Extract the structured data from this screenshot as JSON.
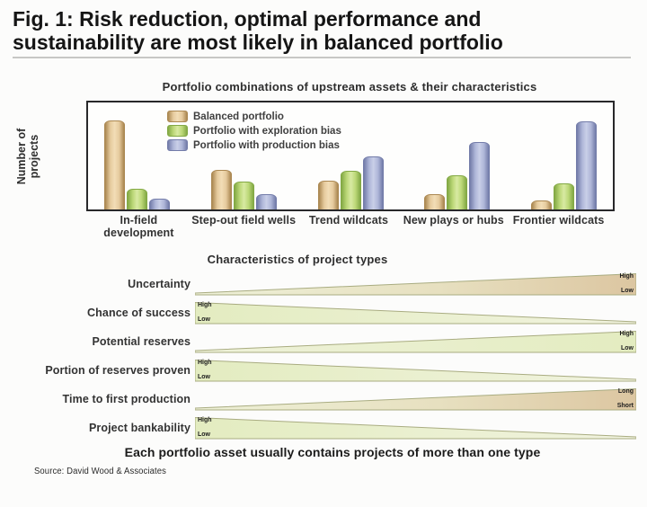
{
  "figure": {
    "title_line1": "Fig. 1: Risk reduction, optimal performance and",
    "title_line2": "sustainability are most likely in balanced portfolio",
    "footnote": "Each portfolio asset usually contains projects of more than one type",
    "source": "Source: David Wood & Associates"
  },
  "chart_data": {
    "type": "bar",
    "title": "Portfolio combinations of upstream assets & their characteristics",
    "ylabel": "Number of projects",
    "categories": [
      "In-field development",
      "Step-out field wells",
      "Trend wildcats",
      "New plays or hubs",
      "Frontier wildcats"
    ],
    "series": [
      {
        "name": "Balanced portfolio",
        "values": [
          83,
          37,
          27,
          14,
          8
        ],
        "color": "#e6cb9e",
        "color_light": "#f2ddb6",
        "border": "#ab8852"
      },
      {
        "name": "Portfolio with exploration bias",
        "values": [
          19,
          26,
          36,
          32,
          24
        ],
        "color": "#bcd878",
        "color_light": "#d8eaa2",
        "border": "#83a945"
      },
      {
        "name": "Portfolio with production bias",
        "values": [
          10,
          14,
          50,
          63,
          82
        ],
        "color": "#aeb6d8",
        "color_light": "#c9cfe8",
        "border": "#737ca9"
      }
    ],
    "ylim": [
      0,
      100
    ],
    "y_ticks_shown": false,
    "grid": false,
    "legend_position": "top-left-inside",
    "value_unit": "relative bar height, % of plot height"
  },
  "characteristics": {
    "title": "Characteristics of project types",
    "rows": [
      {
        "label": "Uncertainty",
        "direction": "expand-right",
        "tint": "tan",
        "end_side": "right",
        "end_labels": [
          "High",
          "Low"
        ]
      },
      {
        "label": "Chance of success",
        "direction": "shrink-right",
        "tint": "green",
        "end_side": "left",
        "end_labels": [
          "High",
          "Low"
        ]
      },
      {
        "label": "Potential reserves",
        "direction": "expand-right",
        "tint": "green",
        "end_side": "right",
        "end_labels": [
          "High",
          "Low"
        ]
      },
      {
        "label": "Portion of reserves proven",
        "direction": "shrink-right",
        "tint": "green",
        "end_side": "left",
        "end_labels": [
          "High",
          "Low"
        ]
      },
      {
        "label": "Time to first production",
        "direction": "expand-right",
        "tint": "tan",
        "end_side": "right",
        "end_labels": [
          "Long",
          "Short"
        ]
      },
      {
        "label": "Project bankability",
        "direction": "shrink-right",
        "tint": "green",
        "end_side": "left",
        "end_labels": [
          "High",
          "Low"
        ]
      }
    ],
    "wedge_colors": {
      "green_light": "#f1f3df",
      "green": "#e3ecc0",
      "tan": "#dcc6a1",
      "stroke": "#a9ac81"
    }
  }
}
